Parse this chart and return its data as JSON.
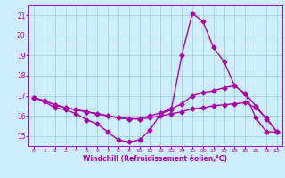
{
  "title": "",
  "xlabel": "Windchill (Refroidissement éolien,°C)",
  "ylabel": "",
  "background_color": "#cceeff",
  "line_color": "#aa00aa",
  "grid_color": "#99cccc",
  "xlim": [
    -0.5,
    23.5
  ],
  "ylim": [
    14.5,
    21.5
  ],
  "yticks": [
    15,
    16,
    17,
    18,
    19,
    20,
    21
  ],
  "xticks": [
    0,
    1,
    2,
    3,
    4,
    5,
    6,
    7,
    8,
    9,
    10,
    11,
    12,
    13,
    14,
    15,
    16,
    17,
    18,
    19,
    20,
    21,
    22,
    23
  ],
  "series": [
    {
      "x": [
        0,
        1,
        2,
        3,
        4,
        5,
        6,
        7,
        8,
        9,
        10,
        11,
        12,
        13,
        14,
        15,
        16,
        17,
        18,
        19,
        20,
        21,
        22,
        23
      ],
      "y": [
        16.9,
        16.7,
        16.4,
        16.3,
        16.1,
        15.8,
        15.6,
        15.2,
        14.8,
        14.7,
        14.8,
        15.3,
        16.1,
        16.3,
        19.0,
        21.1,
        20.7,
        19.4,
        18.7,
        17.5,
        17.1,
        15.9,
        15.2,
        15.2
      ],
      "marker": "D",
      "markersize": 2.5,
      "linewidth": 1.0
    },
    {
      "x": [
        0,
        1,
        2,
        3,
        4,
        5,
        6,
        7,
        8,
        9,
        10,
        11,
        12,
        13,
        14,
        15,
        16,
        17,
        18,
        19,
        20,
        21,
        22,
        23
      ],
      "y": [
        16.9,
        16.75,
        16.55,
        16.4,
        16.3,
        16.2,
        16.1,
        16.0,
        15.9,
        15.85,
        15.85,
        16.0,
        16.15,
        16.35,
        16.6,
        17.0,
        17.15,
        17.25,
        17.4,
        17.5,
        17.1,
        16.5,
        15.85,
        15.2
      ],
      "marker": "D",
      "markersize": 2.5,
      "linewidth": 1.0
    },
    {
      "x": [
        0,
        1,
        2,
        3,
        4,
        5,
        6,
        7,
        8,
        9,
        10,
        11,
        12,
        13,
        14,
        15,
        16,
        17,
        18,
        19,
        20,
        21,
        22,
        23
      ],
      "y": [
        16.9,
        16.75,
        16.55,
        16.4,
        16.3,
        16.2,
        16.1,
        16.0,
        15.9,
        15.85,
        15.85,
        15.9,
        16.0,
        16.1,
        16.2,
        16.35,
        16.4,
        16.5,
        16.55,
        16.6,
        16.65,
        16.4,
        15.9,
        15.2
      ],
      "marker": "D",
      "markersize": 2.5,
      "linewidth": 1.0
    }
  ]
}
